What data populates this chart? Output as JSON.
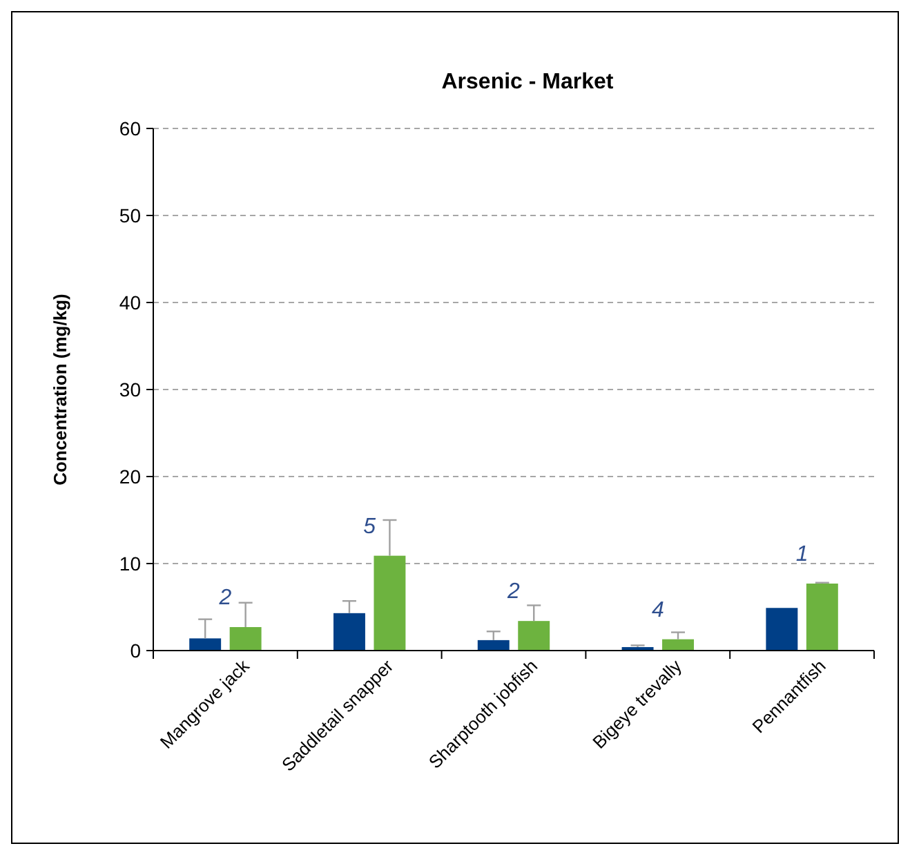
{
  "chart_data": {
    "type": "bar",
    "title": "Arsenic - Market",
    "ylabel": "Concentration (mg/kg)",
    "categories": [
      "Mangrove jack",
      "Saddletail snapper",
      "Sharptooth jobfish",
      "Bigeye trevally",
      "Pennantfish"
    ],
    "series": [
      {
        "color": "#003f87",
        "values": [
          1.4,
          4.3,
          1.2,
          0.4,
          4.9
        ],
        "errors": [
          [
            1.4,
            3.6
          ],
          [
            4.3,
            5.7
          ],
          [
            1.2,
            2.2
          ],
          [
            0.4,
            0.6
          ],
          null
        ]
      },
      {
        "color": "#6db33f",
        "values": [
          2.7,
          10.9,
          3.4,
          1.3,
          7.7
        ],
        "errors": [
          [
            2.7,
            5.5
          ],
          [
            10.9,
            15.0
          ],
          [
            3.4,
            5.2
          ],
          [
            1.3,
            2.1
          ],
          [
            7.7,
            7.8
          ]
        ]
      }
    ],
    "ylim": [
      0,
      60
    ],
    "yticks": [
      0,
      10,
      20,
      30,
      40,
      50,
      60
    ],
    "grid": "y",
    "annotations": [
      "2",
      "5",
      "2",
      "4",
      "1"
    ]
  }
}
